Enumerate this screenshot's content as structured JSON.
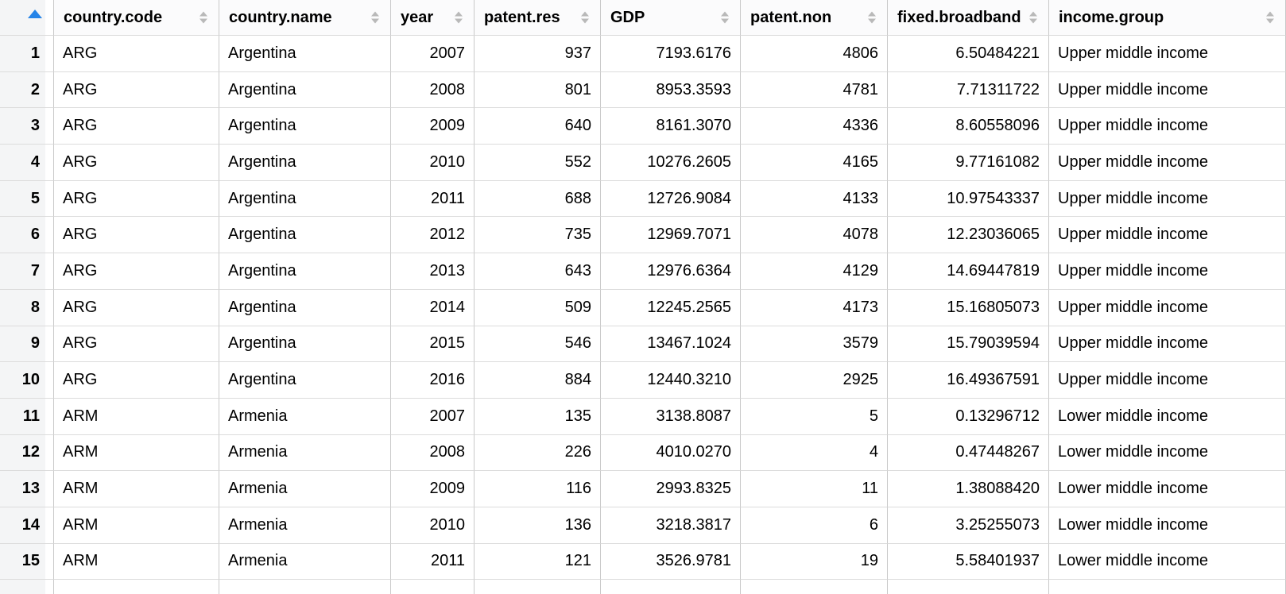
{
  "table": {
    "columns": [
      {
        "name": "row-number",
        "label": "",
        "sorted": "ascending"
      },
      {
        "name": "country-code",
        "label": "country.code"
      },
      {
        "name": "country-name",
        "label": "country.name"
      },
      {
        "name": "year",
        "label": "year"
      },
      {
        "name": "patent-res",
        "label": "patent.res"
      },
      {
        "name": "gdp",
        "label": "GDP"
      },
      {
        "name": "patent-non",
        "label": "patent.non"
      },
      {
        "name": "fixed-broadband",
        "label": "fixed.broadband"
      },
      {
        "name": "income-group",
        "label": "income.group"
      }
    ],
    "rows": [
      [
        "1",
        "ARG",
        "Argentina",
        "2007",
        "937",
        "7193.6176",
        "4806",
        "6.50484221",
        "Upper middle income"
      ],
      [
        "2",
        "ARG",
        "Argentina",
        "2008",
        "801",
        "8953.3593",
        "4781",
        "7.71311722",
        "Upper middle income"
      ],
      [
        "3",
        "ARG",
        "Argentina",
        "2009",
        "640",
        "8161.3070",
        "4336",
        "8.60558096",
        "Upper middle income"
      ],
      [
        "4",
        "ARG",
        "Argentina",
        "2010",
        "552",
        "10276.2605",
        "4165",
        "9.77161082",
        "Upper middle income"
      ],
      [
        "5",
        "ARG",
        "Argentina",
        "2011",
        "688",
        "12726.9084",
        "4133",
        "10.97543337",
        "Upper middle income"
      ],
      [
        "6",
        "ARG",
        "Argentina",
        "2012",
        "735",
        "12969.7071",
        "4078",
        "12.23036065",
        "Upper middle income"
      ],
      [
        "7",
        "ARG",
        "Argentina",
        "2013",
        "643",
        "12976.6364",
        "4129",
        "14.69447819",
        "Upper middle income"
      ],
      [
        "8",
        "ARG",
        "Argentina",
        "2014",
        "509",
        "12245.2565",
        "4173",
        "15.16805073",
        "Upper middle income"
      ],
      [
        "9",
        "ARG",
        "Argentina",
        "2015",
        "546",
        "13467.1024",
        "3579",
        "15.79039594",
        "Upper middle income"
      ],
      [
        "10",
        "ARG",
        "Argentina",
        "2016",
        "884",
        "12440.3210",
        "2925",
        "16.49367591",
        "Upper middle income"
      ],
      [
        "11",
        "ARM",
        "Armenia",
        "2007",
        "135",
        "3138.8087",
        "5",
        "0.13296712",
        "Lower middle income"
      ],
      [
        "12",
        "ARM",
        "Armenia",
        "2008",
        "226",
        "4010.0270",
        "4",
        "0.47448267",
        "Lower middle income"
      ],
      [
        "13",
        "ARM",
        "Armenia",
        "2009",
        "116",
        "2993.8325",
        "11",
        "1.38088420",
        "Lower middle income"
      ],
      [
        "14",
        "ARM",
        "Armenia",
        "2010",
        "136",
        "3218.3817",
        "6",
        "3.25255073",
        "Lower middle income"
      ],
      [
        "15",
        "ARM",
        "Armenia",
        "2011",
        "121",
        "3526.9781",
        "19",
        "5.58401937",
        "Lower middle income"
      ]
    ],
    "colors": {
      "sorted_arrow": "#2584e8",
      "unsorted_arrow": "#b9b9b9",
      "row_number_bg": "#f4f5f6",
      "horizontal_border": "#dcdcdc",
      "vertical_border": "#c9c9c9",
      "header_bg": "#fbfbfc"
    }
  }
}
